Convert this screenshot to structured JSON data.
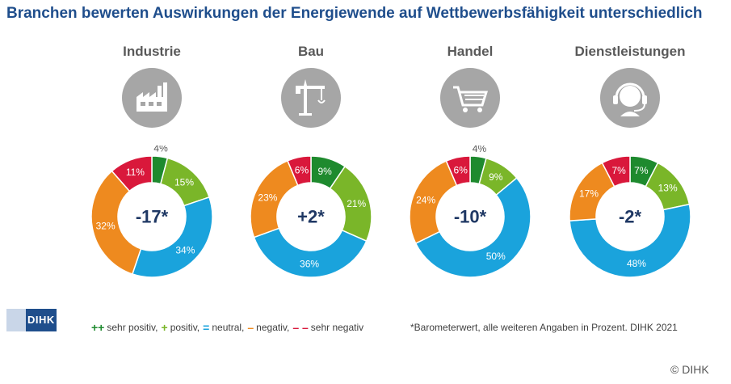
{
  "title": "Branchen bewerten Auswirkungen der Energiewende auf Wettbewerbsfähigkeit unterschiedlich",
  "chart_data": {
    "type": "donut",
    "category_order": [
      "sehr positiv",
      "positiv",
      "neutral",
      "negativ",
      "sehr negativ"
    ],
    "colors": {
      "sehr positiv": "#1e8a2e",
      "positiv": "#7ab629",
      "neutral": "#1aa3dc",
      "negativ": "#ee8a1f",
      "sehr negativ": "#d9183b"
    },
    "unit": "%",
    "charts": [
      {
        "label": "Industrie",
        "icon": "factory-icon",
        "center": "-17*",
        "values": [
          4,
          15,
          34,
          32,
          11
        ]
      },
      {
        "label": "Bau",
        "icon": "crane-icon",
        "center": "+2*",
        "values": [
          9,
          21,
          36,
          23,
          6
        ]
      },
      {
        "label": "Handel",
        "icon": "shopping-cart-icon",
        "center": "-10*",
        "values": [
          4,
          9,
          50,
          24,
          6
        ]
      },
      {
        "label": "Dienstleistungen",
        "icon": "headset-icon",
        "center": "-2*",
        "values": [
          7,
          13,
          48,
          17,
          7
        ]
      }
    ]
  },
  "legend": [
    {
      "symbol": "++",
      "label": "sehr positiv,",
      "color": "#1e8a2e"
    },
    {
      "symbol": "+",
      "label": "positiv,",
      "color": "#7ab629"
    },
    {
      "symbol": "=",
      "label": "neutral,",
      "color": "#1aa3dc"
    },
    {
      "symbol": "–",
      "label": "negativ,",
      "color": "#ee8a1f"
    },
    {
      "symbol": "– –",
      "label": "sehr negativ",
      "color": "#d9183b"
    }
  ],
  "footnote": "*Barometerwert, alle weiteren Angaben in Prozent. DIHK 2021",
  "logo_text": "DIHK",
  "copyright": "© DIHK"
}
